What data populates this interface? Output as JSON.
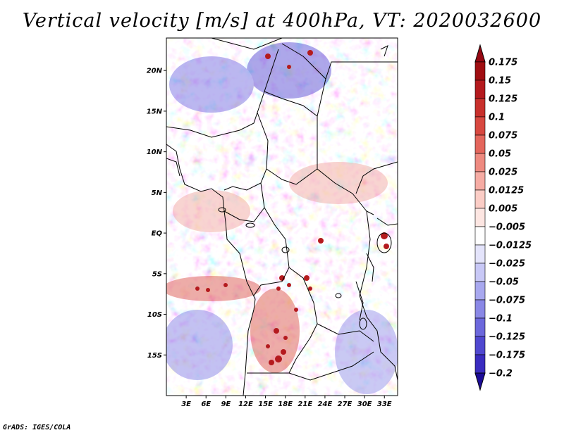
{
  "title": "Vertical velocity [m/s] at 400hPa, VT: 2020032600",
  "credit": "GrADS: IGES/COLA",
  "map": {
    "lon_range": [
      0,
      35
    ],
    "lat_range": [
      -20,
      24
    ],
    "lat_ticks": [
      {
        "lat": 20,
        "label": "20N"
      },
      {
        "lat": 15,
        "label": "15N"
      },
      {
        "lat": 10,
        "label": "10N"
      },
      {
        "lat": 5,
        "label": "5N"
      },
      {
        "lat": 0,
        "label": "EQ"
      },
      {
        "lat": -5,
        "label": "5S"
      },
      {
        "lat": -10,
        "label": "10S"
      },
      {
        "lat": -15,
        "label": "15S"
      }
    ],
    "lon_ticks": [
      {
        "lon": 3,
        "label": "3E"
      },
      {
        "lon": 6,
        "label": "6E"
      },
      {
        "lon": 9,
        "label": "9E"
      },
      {
        "lon": 12,
        "label": "12E"
      },
      {
        "lon": 15,
        "label": "15E"
      },
      {
        "lon": 18,
        "label": "18E"
      },
      {
        "lon": 21,
        "label": "21E"
      },
      {
        "lon": 24,
        "label": "24E"
      },
      {
        "lon": 27,
        "label": "27E"
      },
      {
        "lon": 30,
        "label": "30E"
      },
      {
        "lon": 33,
        "label": "33E"
      }
    ]
  },
  "colorbar": {
    "levels": [
      {
        "label": "0.175",
        "color": "#a00e12"
      },
      {
        "label": "0.15",
        "color": "#b41a1e"
      },
      {
        "label": "0.125",
        "color": "#c8302c"
      },
      {
        "label": "0.1",
        "color": "#d84840"
      },
      {
        "label": "0.075",
        "color": "#e4665c"
      },
      {
        "label": "0.05",
        "color": "#ee8a80"
      },
      {
        "label": "0.025",
        "color": "#f6aca4"
      },
      {
        "label": "0.0125",
        "color": "#fbcdc6"
      },
      {
        "label": "0.005",
        "color": "#fde6e2"
      },
      {
        "label": "-0.005",
        "color": "#ffffff"
      },
      {
        "label": "-0.0125",
        "color": "#e4e4fb"
      },
      {
        "label": "-0.025",
        "color": "#c8c8f6"
      },
      {
        "label": "-0.05",
        "color": "#a8a8ef"
      },
      {
        "label": "-0.075",
        "color": "#8a88e6"
      },
      {
        "label": "-0.1",
        "color": "#6c68dc"
      },
      {
        "label": "-0.125",
        "color": "#5048d0"
      },
      {
        "label": "-0.175",
        "color": "#3a2cc0"
      },
      {
        "label": "-0.2",
        "color": "#2818a8"
      }
    ],
    "top_color": "#960812",
    "bottom_color": "#1c0c98"
  }
}
